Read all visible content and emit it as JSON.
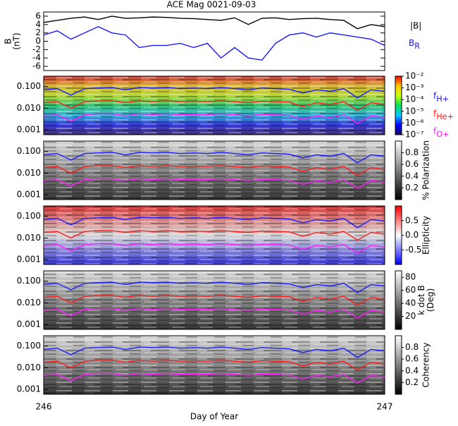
{
  "chart_data": [
    {
      "type": "line",
      "title": "ACE Mag 0021-09-03",
      "ylabel": [
        "B",
        "(nT)"
      ],
      "x": [
        246.0,
        246.04,
        246.08,
        246.12,
        246.16,
        246.2,
        246.24,
        246.28,
        246.32,
        246.36,
        246.4,
        246.44,
        246.48,
        246.52,
        246.56,
        246.6,
        246.64,
        246.68,
        246.72,
        246.76,
        246.8,
        246.84,
        246.88,
        246.92,
        246.96,
        247.0
      ],
      "xlim": [
        246,
        247
      ],
      "ylim": [
        -7,
        7
      ],
      "yticks": [
        -6,
        -4,
        -2,
        0,
        2,
        4,
        6
      ],
      "series": [
        {
          "name": "|B|",
          "color": "#000000",
          "values": [
            4.5,
            5.0,
            5.5,
            5.8,
            5.2,
            6.0,
            5.5,
            5.6,
            5.8,
            5.7,
            5.5,
            5.4,
            5.2,
            5.0,
            5.6,
            4.0,
            5.5,
            5.6,
            5.2,
            5.4,
            5.5,
            5.2,
            5.0,
            3.0,
            4.0,
            3.5
          ]
        },
        {
          "name": "B",
          "subscript": "R",
          "color": "#1a1aff",
          "values": [
            1.5,
            2.5,
            0.5,
            2.0,
            3.5,
            2.0,
            1.5,
            -1.5,
            -1.0,
            -1.0,
            -0.5,
            -1.5,
            -0.5,
            -4.0,
            -1.5,
            -4.0,
            -4.5,
            -0.5,
            1.5,
            2.0,
            1.0,
            2.0,
            1.5,
            1.0,
            0.5,
            -1.0
          ]
        }
      ]
    },
    {
      "type": "spectrogram",
      "xlabel": "Day of Year",
      "log_y": true,
      "x": [
        246.0,
        246.04,
        246.08,
        246.12,
        246.16,
        246.2,
        246.24,
        246.28,
        246.32,
        246.36,
        246.4,
        246.44,
        246.48,
        246.52,
        246.56,
        246.6,
        246.64,
        246.68,
        246.72,
        246.76,
        246.8,
        246.84,
        246.88,
        246.92,
        246.96,
        247.0
      ],
      "xlim": [
        246,
        247
      ],
      "xticks": [
        246,
        247
      ],
      "ylim": [
        0.0006,
        0.3
      ],
      "yticks": [
        0.001,
        {
          "value": 0.01,
          "label": "0.010"
        },
        {
          "value": 0.1,
          "label": "0.100"
        }
      ],
      "series": [
        {
          "name": "f",
          "subscript": "H+",
          "color": "#1a1aff",
          "values": [
            0.07,
            0.08,
            0.04,
            0.08,
            0.085,
            0.09,
            0.07,
            0.09,
            0.085,
            0.09,
            0.08,
            0.085,
            0.08,
            0.09,
            0.08,
            0.07,
            0.085,
            0.08,
            0.075,
            0.05,
            0.07,
            0.06,
            0.08,
            0.03,
            0.07,
            0.06
          ]
        },
        {
          "name": "f",
          "subscript": "He+",
          "color": "#ff1a1a",
          "values": [
            0.018,
            0.02,
            0.01,
            0.02,
            0.022,
            0.022,
            0.018,
            0.022,
            0.02,
            0.022,
            0.02,
            0.021,
            0.02,
            0.022,
            0.02,
            0.018,
            0.021,
            0.02,
            0.019,
            0.012,
            0.018,
            0.015,
            0.02,
            0.008,
            0.018,
            0.015
          ]
        },
        {
          "name": "f",
          "subscript": "O+",
          "color": "#ff1aff",
          "values": [
            0.0045,
            0.005,
            0.0025,
            0.005,
            0.0055,
            0.0055,
            0.0045,
            0.0055,
            0.005,
            0.0055,
            0.005,
            0.0052,
            0.005,
            0.0055,
            0.005,
            0.0045,
            0.0052,
            0.005,
            0.0047,
            0.003,
            0.0045,
            0.0038,
            0.005,
            0.002,
            0.0045,
            0.0038
          ]
        }
      ],
      "panels": [
        {
          "clim": [
            1e-07,
            0.01
          ],
          "log_c": true,
          "colormap": [
            "#1a0066",
            "#0000ff",
            "#00c8ff",
            "#00e060",
            "#c8ff00",
            "#ffc800",
            "#ff0000"
          ],
          "cticks": [
            {
              "value": 0.01,
              "label": "10⁻²"
            },
            {
              "value": 0.001,
              "label": "10⁻³"
            },
            {
              "value": 0.0001,
              "label": "10⁻⁴"
            },
            {
              "value": 1e-05,
              "label": "10⁻⁵"
            },
            {
              "value": 1e-06,
              "label": "10⁻⁶"
            },
            {
              "value": 1e-07,
              "label": "10⁻⁷"
            }
          ]
        },
        {
          "clim": [
            0,
            1
          ],
          "clabel": [
            "% Polarization"
          ],
          "colormap": [
            "#000000",
            "#ffffff"
          ],
          "cticks": [
            0.2,
            0.4,
            0.6,
            0.8
          ]
        },
        {
          "clim": [
            -1,
            1
          ],
          "clabel": [
            "Ellipticity"
          ],
          "colormap": [
            "#0000ff",
            "#ffffff",
            "#ff0000"
          ],
          "cticks": [
            -0.5,
            {
              "value": 0,
              "label": "0.0"
            },
            0.5
          ]
        },
        {
          "clim": [
            0,
            90
          ],
          "clabel": [
            "k dot B",
            "(Deg)"
          ],
          "colormap": [
            "#000000",
            "#ffffff"
          ],
          "cticks": [
            20,
            40,
            60,
            80
          ]
        },
        {
          "clim": [
            0,
            1
          ],
          "clabel": [
            "Coherency"
          ],
          "colormap": [
            "#000000",
            "#ffffff"
          ],
          "cticks": [
            0.2,
            0.4,
            0.6,
            0.8
          ]
        }
      ]
    }
  ]
}
